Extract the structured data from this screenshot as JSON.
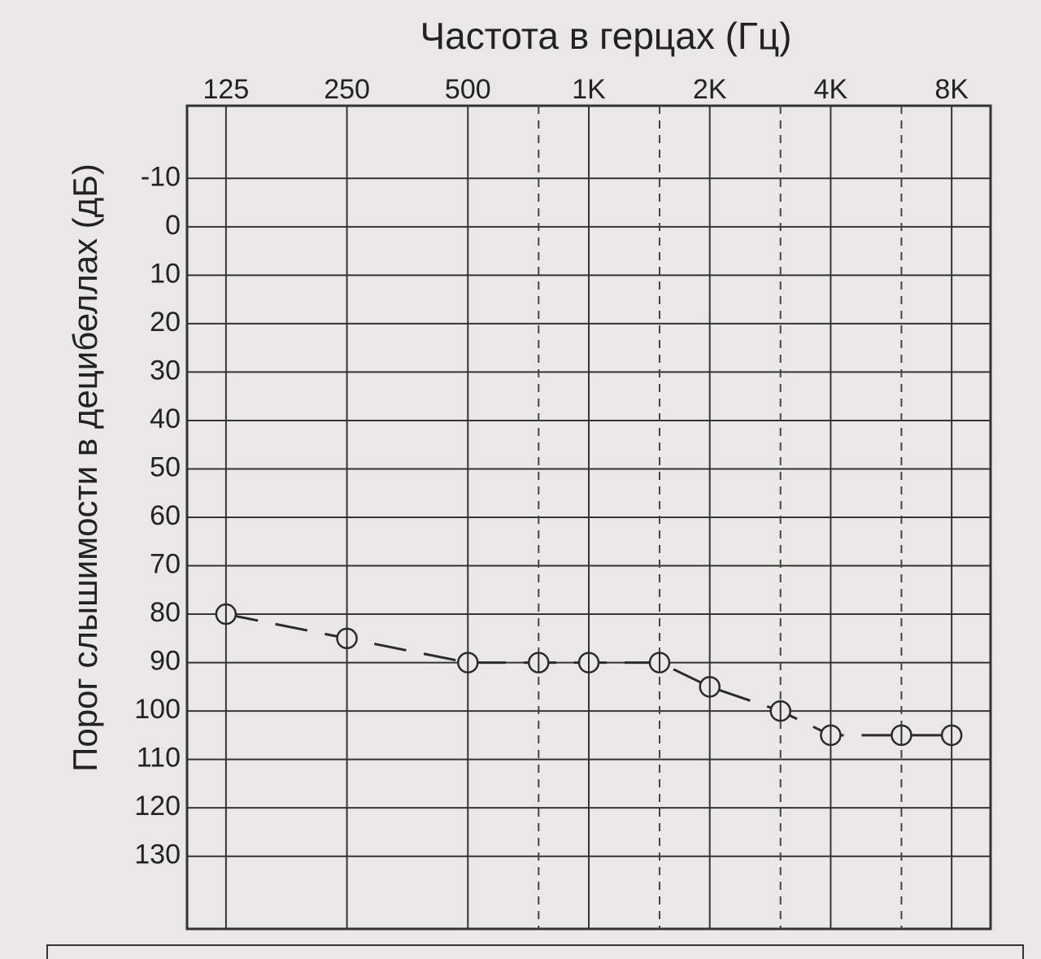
{
  "chart_data": {
    "type": "line",
    "title": "Частота в герцах (Гц)",
    "y_label": "Порог слышимости в децибеллах (дБ)",
    "x": [
      125,
      250,
      500,
      750,
      1000,
      1500,
      2000,
      3000,
      4000,
      6000,
      8000
    ],
    "values": [
      80,
      85,
      90,
      90,
      90,
      90,
      95,
      100,
      105,
      105,
      105
    ],
    "color": "#2a2a2a",
    "xscale": "log",
    "xlim": [
      100,
      10000
    ],
    "xticks": [
      125,
      250,
      500,
      {
        "value": 1000,
        "label": "1K"
      },
      {
        "value": 2000,
        "label": "2K"
      },
      {
        "value": 4000,
        "label": "4K"
      },
      {
        "value": 8000,
        "label": "8K"
      }
    ],
    "xticks_minor": [
      750,
      1500,
      3000,
      6000
    ],
    "ylim": [
      145,
      -25
    ],
    "yticks": [
      -10,
      0,
      10,
      20,
      30,
      40,
      50,
      60,
      70,
      80,
      90,
      100,
      110,
      120,
      130
    ],
    "grid": true
  }
}
